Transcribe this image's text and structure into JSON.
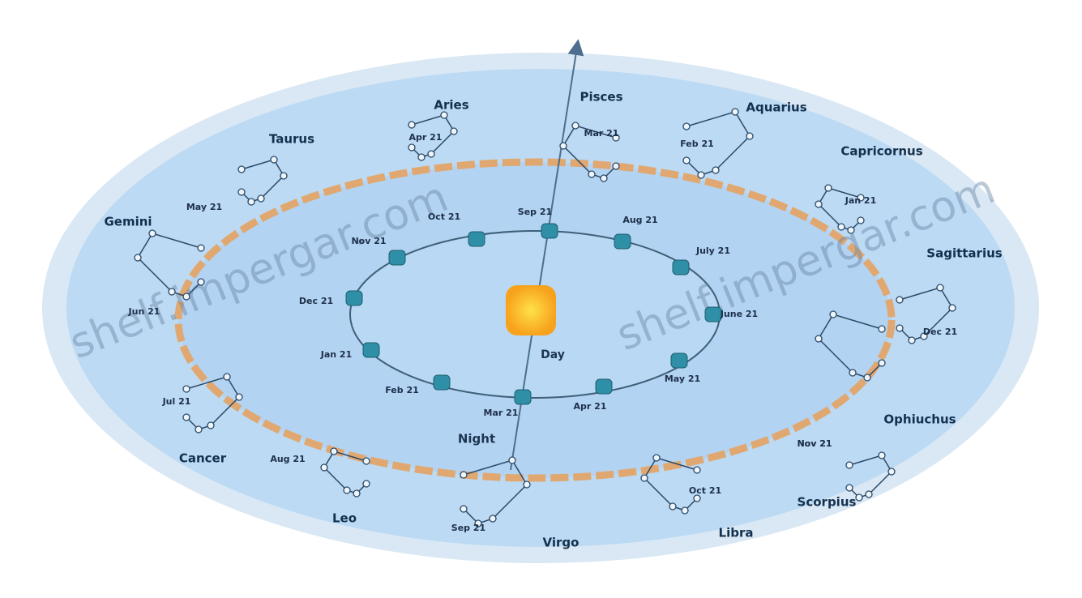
{
  "constellations": [
    {
      "name": "Aries",
      "date": "Apr 21"
    },
    {
      "name": "Pisces",
      "date": "Mar 21"
    },
    {
      "name": "Aquarius",
      "date": "Feb 21"
    },
    {
      "name": "Capricornus",
      "date": "Jan 21"
    },
    {
      "name": "Sagittarius",
      "date": "Dec 21"
    },
    {
      "name": "Ophiuchus",
      "date": "Nov 21"
    },
    {
      "name": "Scorpius",
      "date": "Nov 21"
    },
    {
      "name": "Libra",
      "date": "Oct 21"
    },
    {
      "name": "Virgo",
      "date": "Sep 21"
    },
    {
      "name": "Leo",
      "date": "Aug 21"
    },
    {
      "name": "Cancer",
      "date": "Jul 21"
    },
    {
      "name": "Gemini",
      "date": "Jun 21"
    },
    {
      "name": "Taurus",
      "date": "May 21"
    }
  ],
  "orbit_dates": [
    "Sep 21",
    "Oct 21",
    "Nov 21",
    "Dec 21",
    "Jan 21",
    "Feb 21",
    "Mar 21",
    "Apr 21",
    "May 21",
    "June 21",
    "July 21",
    "Aug 21"
  ],
  "labels": {
    "day": "Day",
    "night": "Night"
  },
  "watermarks": [
    "shelf.impergar.com",
    "shelf.impergar.com"
  ]
}
